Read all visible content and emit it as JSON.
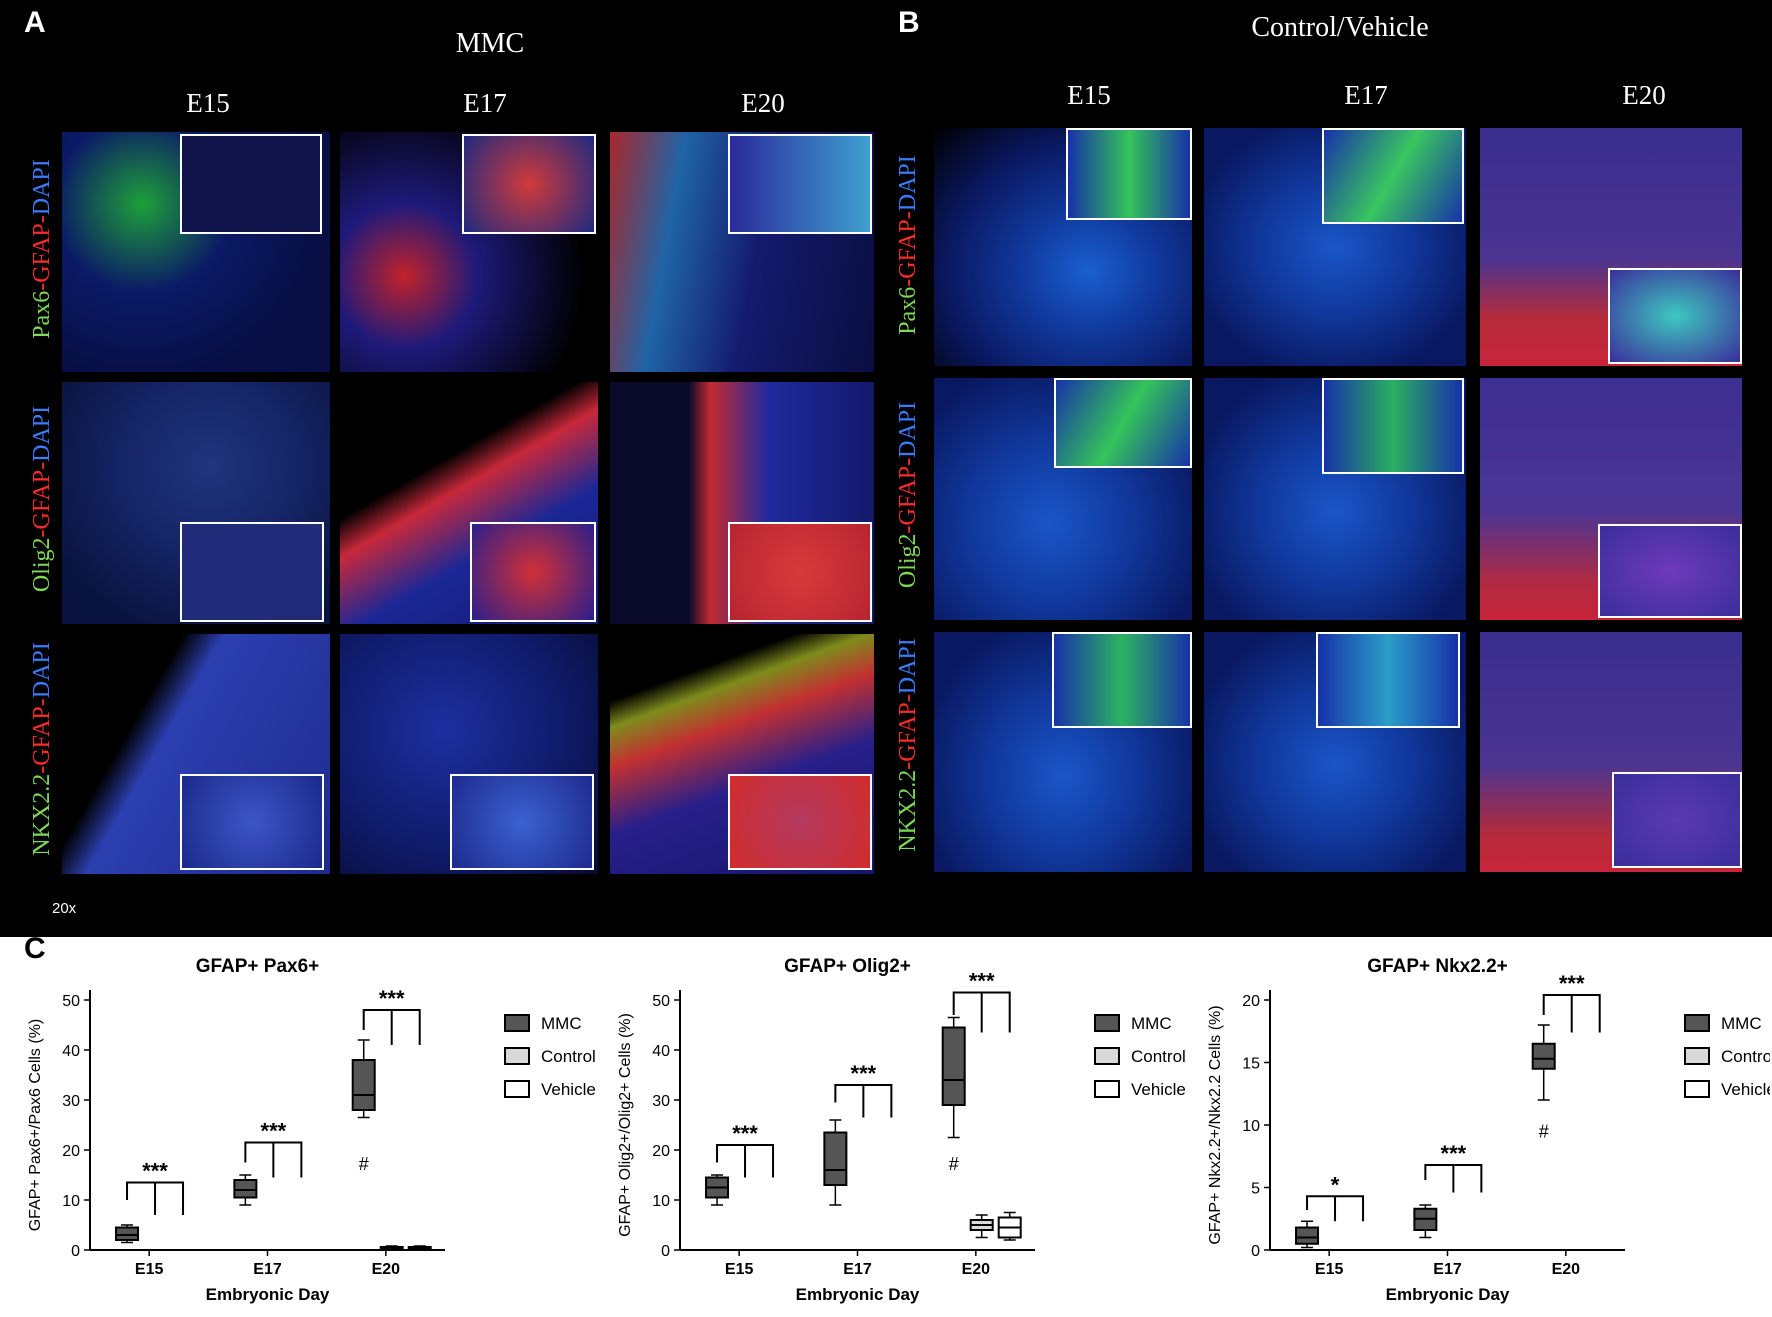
{
  "panelA": {
    "letter": "A",
    "title": "MMC",
    "days": [
      "E15",
      "E17",
      "E20"
    ],
    "row_labels": [
      {
        "g": "Pax6",
        "r": "-GFAP-",
        "b": "DAPI"
      },
      {
        "g": "Olig2",
        "r": "-GFAP-",
        "b": "DAPI"
      },
      {
        "g": "NKX2.2",
        "r": "-GFAP-",
        "b": "DAPI"
      }
    ],
    "magnification": "20x"
  },
  "panelB": {
    "letter": "B",
    "title": "Control/Vehicle",
    "days": [
      "E15",
      "E17",
      "E20"
    ],
    "row_labels": [
      {
        "g": "Pax6",
        "r": "-GFAP-",
        "b": "DAPI"
      },
      {
        "g": "Olig2",
        "r": "-GFAP-",
        "b": "DAPI"
      },
      {
        "g": "NKX2.2",
        "r": "-GFAP-",
        "b": "DAPI"
      }
    ]
  },
  "panelC": {
    "letter": "C"
  },
  "colors": {
    "mmc": "#555555",
    "control": "#d9d9d9",
    "vehicle": "#ffffff"
  },
  "chart_data": [
    {
      "type": "box",
      "title": "GFAP+ Pax6+",
      "xlabel": "Embryonic Day",
      "ylabel": "GFAP+ Pax6+/Pax6 Cells  (%)",
      "ylim": [
        0,
        50
      ],
      "yticks": [
        0,
        10,
        20,
        30,
        40,
        50
      ],
      "categories": [
        "E15",
        "E17",
        "E20"
      ],
      "legend": [
        "MMC",
        "Control",
        "Vehicle"
      ],
      "series": [
        {
          "name": "MMC",
          "boxes": [
            {
              "min": 1.5,
              "q1": 2.0,
              "median": 3.0,
              "q3": 4.5,
              "max": 5.0
            },
            {
              "min": 9.0,
              "q1": 10.5,
              "median": 12.0,
              "q3": 14.0,
              "max": 15.0
            },
            {
              "min": 26.5,
              "q1": 28.0,
              "median": 31.0,
              "q3": 38.0,
              "max": 42.0
            }
          ]
        },
        {
          "name": "Control",
          "boxes": [
            {
              "min": 0,
              "q1": 0,
              "median": 0,
              "q3": 0,
              "max": 0
            },
            {
              "min": 0,
              "q1": 0,
              "median": 0,
              "q3": 0,
              "max": 0
            },
            {
              "min": 0,
              "q1": 0.2,
              "median": 0.4,
              "q3": 0.6,
              "max": 0.8
            }
          ]
        },
        {
          "name": "Vehicle",
          "boxes": [
            {
              "min": 0,
              "q1": 0,
              "median": 0,
              "q3": 0,
              "max": 0
            },
            {
              "min": 0,
              "q1": 0,
              "median": 0,
              "q3": 0,
              "max": 0
            },
            {
              "min": 0,
              "q1": 0.2,
              "median": 0.4,
              "q3": 0.6,
              "max": 0.8
            }
          ]
        }
      ],
      "significance": [
        "***",
        "***",
        "***"
      ],
      "sig_brackets": [
        {
          "y": 13.5,
          "drop1": 10.0,
          "drop2": 7.0
        },
        {
          "y": 21.5,
          "drop1": 17.5,
          "drop2": 14.5
        },
        {
          "y": 48.0,
          "drop1": 44.0,
          "drop2": 41.0
        }
      ],
      "annotations": [
        {
          "text": "#",
          "category": "E20",
          "y": 16
        }
      ]
    },
    {
      "type": "box",
      "title": "GFAP+ Olig2+",
      "xlabel": "Embryonic Day",
      "ylabel": "GFAP+ Olig2+/Olig2+ Cells  (%)",
      "ylim": [
        0,
        50
      ],
      "yticks": [
        0,
        10,
        20,
        30,
        40,
        50
      ],
      "categories": [
        "E15",
        "E17",
        "E20"
      ],
      "legend": [
        "MMC",
        "Control",
        "Vehicle"
      ],
      "series": [
        {
          "name": "MMC",
          "boxes": [
            {
              "min": 9.0,
              "q1": 10.5,
              "median": 12.5,
              "q3": 14.5,
              "max": 15.0
            },
            {
              "min": 9.0,
              "q1": 13.0,
              "median": 16.0,
              "q3": 23.5,
              "max": 26.0
            },
            {
              "min": 22.5,
              "q1": 29.0,
              "median": 34.0,
              "q3": 44.5,
              "max": 46.5
            }
          ]
        },
        {
          "name": "Control",
          "boxes": [
            {
              "min": 0,
              "q1": 0,
              "median": 0,
              "q3": 0,
              "max": 0
            },
            {
              "min": 0,
              "q1": 0,
              "median": 0,
              "q3": 0,
              "max": 0
            },
            {
              "min": 2.5,
              "q1": 4.0,
              "median": 5.0,
              "q3": 6.0,
              "max": 7.0
            }
          ]
        },
        {
          "name": "Vehicle",
          "boxes": [
            {
              "min": 0,
              "q1": 0,
              "median": 0,
              "q3": 0,
              "max": 0
            },
            {
              "min": 0,
              "q1": 0,
              "median": 0,
              "q3": 0,
              "max": 0
            },
            {
              "min": 2.0,
              "q1": 2.5,
              "median": 4.5,
              "q3": 6.5,
              "max": 7.5
            }
          ]
        }
      ],
      "significance": [
        "***",
        "***",
        "***"
      ],
      "sig_brackets": [
        {
          "y": 21.0,
          "drop1": 17.5,
          "drop2": 14.5
        },
        {
          "y": 33.0,
          "drop1": 29.5,
          "drop2": 26.5
        },
        {
          "y": 51.5,
          "drop1": 47.0,
          "drop2": 43.5
        }
      ],
      "annotations": [
        {
          "text": "#",
          "category": "E20",
          "y": 16
        }
      ]
    },
    {
      "type": "box",
      "title": "GFAP+ Nkx2.2+",
      "xlabel": "Embryonic Day",
      "ylabel": "GFAP+ Nkx2.2+/Nkx2.2 Cells  (%)",
      "ylim": [
        0,
        20
      ],
      "yticks": [
        0,
        5,
        10,
        15,
        20
      ],
      "categories": [
        "E15",
        "E17",
        "E20"
      ],
      "legend": [
        "MMC",
        "Control",
        "Vehicle"
      ],
      "series": [
        {
          "name": "MMC",
          "boxes": [
            {
              "min": 0.2,
              "q1": 0.5,
              "median": 1.0,
              "q3": 1.8,
              "max": 2.3
            },
            {
              "min": 1.0,
              "q1": 1.6,
              "median": 2.5,
              "q3": 3.3,
              "max": 3.6
            },
            {
              "min": 12.0,
              "q1": 14.5,
              "median": 15.3,
              "q3": 16.5,
              "max": 18.0
            }
          ]
        },
        {
          "name": "Control",
          "boxes": [
            {
              "min": 0,
              "q1": 0,
              "median": 0,
              "q3": 0,
              "max": 0
            },
            {
              "min": 0,
              "q1": 0,
              "median": 0,
              "q3": 0,
              "max": 0
            },
            {
              "min": 0,
              "q1": 0,
              "median": 0,
              "q3": 0,
              "max": 0
            }
          ]
        },
        {
          "name": "Vehicle",
          "boxes": [
            {
              "min": 0,
              "q1": 0,
              "median": 0,
              "q3": 0,
              "max": 0
            },
            {
              "min": 0,
              "q1": 0,
              "median": 0,
              "q3": 0,
              "max": 0
            },
            {
              "min": 0,
              "q1": 0,
              "median": 0,
              "q3": 0,
              "max": 0
            }
          ]
        }
      ],
      "significance": [
        "*",
        "***",
        "***"
      ],
      "sig_brackets": [
        {
          "y": 4.3,
          "drop1": 3.2,
          "drop2": 2.3
        },
        {
          "y": 6.8,
          "drop1": 5.6,
          "drop2": 4.6
        },
        {
          "y": 20.4,
          "drop1": 18.8,
          "drop2": 17.4
        }
      ],
      "annotations": [
        {
          "text": "#",
          "category": "E20",
          "y": 9.0
        }
      ]
    }
  ]
}
